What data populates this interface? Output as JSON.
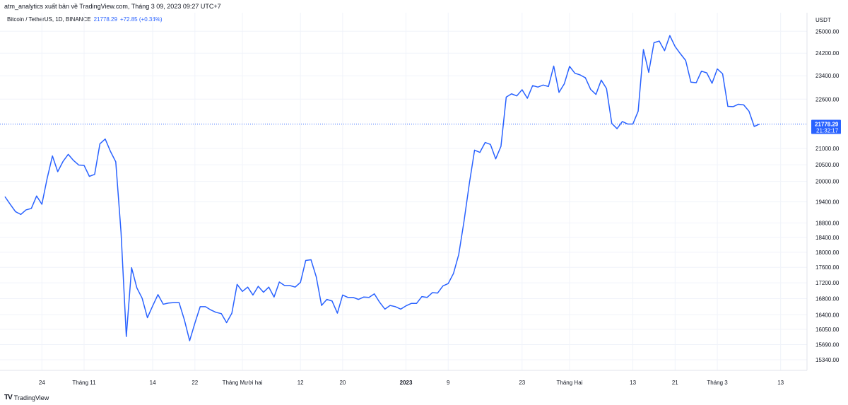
{
  "header": {
    "publisher": "atm_analytics xuất bản về TradingView.com, Tháng 3 09, 2023 09:27 UTC+7"
  },
  "legend": {
    "symbol": "Bitcoin / TetherUS, 1D, BINANCE",
    "price": "21778.29",
    "change": "+72.85 (+0.34%)"
  },
  "footer": {
    "logo": "TV",
    "brand": "TradingView"
  },
  "colors": {
    "line": "#2962ff",
    "grid": "#f0f3fa",
    "label_bg": "#2962ff"
  },
  "chart_data": {
    "type": "line",
    "title": "",
    "ylabel": "USDT",
    "y_scale": "log",
    "ylim": [
      15100,
      25700
    ],
    "y_ticks": [
      25000,
      24200,
      23400,
      22600,
      21000,
      20500,
      20000,
      19400,
      18800,
      18400,
      18000,
      17600,
      17200,
      16800,
      16400,
      16050,
      15690,
      15340
    ],
    "y_tick_labels": [
      "25000.00",
      "24200.00",
      "23400.00",
      "22600.00",
      "21000.00",
      "20500.00",
      "20000.00",
      "19400.00",
      "18800.00",
      "18400.00",
      "18000.00",
      "17600.00",
      "17200.00",
      "16800.00",
      "16400.00",
      "16050.00",
      "15690.00",
      "15340.00"
    ],
    "x_tick_labels": [
      {
        "label": "24",
        "date": "2022-10-24",
        "bold": false
      },
      {
        "label": "Tháng 11",
        "date": "2022-11-01",
        "bold": false
      },
      {
        "label": "14",
        "date": "2022-11-14",
        "bold": false
      },
      {
        "label": "22",
        "date": "2022-11-22",
        "bold": false
      },
      {
        "label": "Tháng Mười hai",
        "date": "2022-12-01",
        "bold": false
      },
      {
        "label": "12",
        "date": "2022-12-12",
        "bold": false
      },
      {
        "label": "20",
        "date": "2022-12-20",
        "bold": false
      },
      {
        "label": "2023",
        "date": "2023-01-01",
        "bold": true
      },
      {
        "label": "9",
        "date": "2023-01-09",
        "bold": false
      },
      {
        "label": "23",
        "date": "2023-01-23",
        "bold": false
      },
      {
        "label": "Tháng Hai",
        "date": "2023-02-01",
        "bold": false
      },
      {
        "label": "13",
        "date": "2023-02-13",
        "bold": false
      },
      {
        "label": "21",
        "date": "2023-02-21",
        "bold": false
      },
      {
        "label": "Tháng 3",
        "date": "2023-03-01",
        "bold": false
      },
      {
        "label": "13",
        "date": "2023-03-13",
        "bold": false
      }
    ],
    "x_range": [
      "2022-10-17",
      "2023-03-18"
    ],
    "last_price": 21778.29,
    "last_price_label": "21778.29",
    "countdown_label": "21:32:17",
    "series": [
      {
        "values": [
          {
            "date": "2022-10-17",
            "value": 19550
          },
          {
            "date": "2022-10-18",
            "value": 19330
          },
          {
            "date": "2022-10-19",
            "value": 19120
          },
          {
            "date": "2022-10-20",
            "value": 19040
          },
          {
            "date": "2022-10-21",
            "value": 19170
          },
          {
            "date": "2022-10-22",
            "value": 19210
          },
          {
            "date": "2022-10-23",
            "value": 19570
          },
          {
            "date": "2022-10-24",
            "value": 19330
          },
          {
            "date": "2022-10-25",
            "value": 20090
          },
          {
            "date": "2022-10-26",
            "value": 20770
          },
          {
            "date": "2022-10-27",
            "value": 20290
          },
          {
            "date": "2022-10-28",
            "value": 20600
          },
          {
            "date": "2022-10-29",
            "value": 20820
          },
          {
            "date": "2022-10-30",
            "value": 20630
          },
          {
            "date": "2022-10-31",
            "value": 20490
          },
          {
            "date": "2022-11-01",
            "value": 20480
          },
          {
            "date": "2022-11-02",
            "value": 20150
          },
          {
            "date": "2022-11-03",
            "value": 20210
          },
          {
            "date": "2022-11-04",
            "value": 21150
          },
          {
            "date": "2022-11-05",
            "value": 21300
          },
          {
            "date": "2022-11-06",
            "value": 20910
          },
          {
            "date": "2022-11-07",
            "value": 20590
          },
          {
            "date": "2022-11-08",
            "value": 18540
          },
          {
            "date": "2022-11-09",
            "value": 15880
          },
          {
            "date": "2022-11-10",
            "value": 17590
          },
          {
            "date": "2022-11-11",
            "value": 17070
          },
          {
            "date": "2022-11-12",
            "value": 16810
          },
          {
            "date": "2022-11-13",
            "value": 16330
          },
          {
            "date": "2022-11-14",
            "value": 16620
          },
          {
            "date": "2022-11-15",
            "value": 16900
          },
          {
            "date": "2022-11-16",
            "value": 16660
          },
          {
            "date": "2022-11-17",
            "value": 16690
          },
          {
            "date": "2022-11-18",
            "value": 16700
          },
          {
            "date": "2022-11-19",
            "value": 16700
          },
          {
            "date": "2022-11-20",
            "value": 16280
          },
          {
            "date": "2022-11-21",
            "value": 15780
          },
          {
            "date": "2022-11-22",
            "value": 16200
          },
          {
            "date": "2022-11-23",
            "value": 16600
          },
          {
            "date": "2022-11-24",
            "value": 16600
          },
          {
            "date": "2022-11-25",
            "value": 16520
          },
          {
            "date": "2022-11-26",
            "value": 16460
          },
          {
            "date": "2022-11-27",
            "value": 16430
          },
          {
            "date": "2022-11-28",
            "value": 16210
          },
          {
            "date": "2022-11-29",
            "value": 16440
          },
          {
            "date": "2022-11-30",
            "value": 17160
          },
          {
            "date": "2022-12-01",
            "value": 16980
          },
          {
            "date": "2022-12-02",
            "value": 17090
          },
          {
            "date": "2022-12-03",
            "value": 16890
          },
          {
            "date": "2022-12-04",
            "value": 17110
          },
          {
            "date": "2022-12-05",
            "value": 16960
          },
          {
            "date": "2022-12-06",
            "value": 17090
          },
          {
            "date": "2022-12-07",
            "value": 16840
          },
          {
            "date": "2022-12-08",
            "value": 17220
          },
          {
            "date": "2022-12-09",
            "value": 17130
          },
          {
            "date": "2022-12-10",
            "value": 17130
          },
          {
            "date": "2022-12-11",
            "value": 17090
          },
          {
            "date": "2022-12-12",
            "value": 17210
          },
          {
            "date": "2022-12-13",
            "value": 17780
          },
          {
            "date": "2022-12-14",
            "value": 17800
          },
          {
            "date": "2022-12-15",
            "value": 17350
          },
          {
            "date": "2022-12-16",
            "value": 16630
          },
          {
            "date": "2022-12-17",
            "value": 16780
          },
          {
            "date": "2022-12-18",
            "value": 16740
          },
          {
            "date": "2022-12-19",
            "value": 16440
          },
          {
            "date": "2022-12-20",
            "value": 16890
          },
          {
            "date": "2022-12-21",
            "value": 16830
          },
          {
            "date": "2022-12-22",
            "value": 16830
          },
          {
            "date": "2022-12-23",
            "value": 16780
          },
          {
            "date": "2022-12-24",
            "value": 16840
          },
          {
            "date": "2022-12-25",
            "value": 16830
          },
          {
            "date": "2022-12-26",
            "value": 16920
          },
          {
            "date": "2022-12-27",
            "value": 16710
          },
          {
            "date": "2022-12-28",
            "value": 16540
          },
          {
            "date": "2022-12-29",
            "value": 16630
          },
          {
            "date": "2022-12-30",
            "value": 16600
          },
          {
            "date": "2022-12-31",
            "value": 16540
          },
          {
            "date": "2023-01-01",
            "value": 16620
          },
          {
            "date": "2023-01-02",
            "value": 16680
          },
          {
            "date": "2023-01-03",
            "value": 16680
          },
          {
            "date": "2023-01-04",
            "value": 16850
          },
          {
            "date": "2023-01-05",
            "value": 16830
          },
          {
            "date": "2023-01-06",
            "value": 16950
          },
          {
            "date": "2023-01-07",
            "value": 16940
          },
          {
            "date": "2023-01-08",
            "value": 17120
          },
          {
            "date": "2023-01-09",
            "value": 17180
          },
          {
            "date": "2023-01-10",
            "value": 17440
          },
          {
            "date": "2023-01-11",
            "value": 17940
          },
          {
            "date": "2023-01-12",
            "value": 18850
          },
          {
            "date": "2023-01-13",
            "value": 19930
          },
          {
            "date": "2023-01-14",
            "value": 20950
          },
          {
            "date": "2023-01-15",
            "value": 20880
          },
          {
            "date": "2023-01-16",
            "value": 21190
          },
          {
            "date": "2023-01-17",
            "value": 21130
          },
          {
            "date": "2023-01-18",
            "value": 20680
          },
          {
            "date": "2023-01-19",
            "value": 21070
          },
          {
            "date": "2023-01-20",
            "value": 22670
          },
          {
            "date": "2023-01-21",
            "value": 22780
          },
          {
            "date": "2023-01-22",
            "value": 22710
          },
          {
            "date": "2023-01-23",
            "value": 22920
          },
          {
            "date": "2023-01-24",
            "value": 22630
          },
          {
            "date": "2023-01-25",
            "value": 23060
          },
          {
            "date": "2023-01-26",
            "value": 23010
          },
          {
            "date": "2023-01-27",
            "value": 23080
          },
          {
            "date": "2023-01-28",
            "value": 23030
          },
          {
            "date": "2023-01-29",
            "value": 23740
          },
          {
            "date": "2023-01-30",
            "value": 22830
          },
          {
            "date": "2023-01-31",
            "value": 23120
          },
          {
            "date": "2023-02-01",
            "value": 23730
          },
          {
            "date": "2023-02-02",
            "value": 23490
          },
          {
            "date": "2023-02-03",
            "value": 23430
          },
          {
            "date": "2023-02-04",
            "value": 23330
          },
          {
            "date": "2023-02-05",
            "value": 22930
          },
          {
            "date": "2023-02-06",
            "value": 22760
          },
          {
            "date": "2023-02-07",
            "value": 23250
          },
          {
            "date": "2023-02-08",
            "value": 22960
          },
          {
            "date": "2023-02-09",
            "value": 21800
          },
          {
            "date": "2023-02-10",
            "value": 21630
          },
          {
            "date": "2023-02-11",
            "value": 21860
          },
          {
            "date": "2023-02-12",
            "value": 21780
          },
          {
            "date": "2023-02-13",
            "value": 21780
          },
          {
            "date": "2023-02-14",
            "value": 22200
          },
          {
            "date": "2023-02-15",
            "value": 24330
          },
          {
            "date": "2023-02-16",
            "value": 23520
          },
          {
            "date": "2023-02-17",
            "value": 24580
          },
          {
            "date": "2023-02-18",
            "value": 24640
          },
          {
            "date": "2023-02-19",
            "value": 24290
          },
          {
            "date": "2023-02-20",
            "value": 24840
          },
          {
            "date": "2023-02-21",
            "value": 24440
          },
          {
            "date": "2023-02-22",
            "value": 24180
          },
          {
            "date": "2023-02-23",
            "value": 23940
          },
          {
            "date": "2023-02-24",
            "value": 23180
          },
          {
            "date": "2023-02-25",
            "value": 23160
          },
          {
            "date": "2023-02-26",
            "value": 23560
          },
          {
            "date": "2023-02-27",
            "value": 23500
          },
          {
            "date": "2023-02-28",
            "value": 23140
          },
          {
            "date": "2023-03-01",
            "value": 23640
          },
          {
            "date": "2023-03-02",
            "value": 23470
          },
          {
            "date": "2023-03-03",
            "value": 22360
          },
          {
            "date": "2023-03-04",
            "value": 22350
          },
          {
            "date": "2023-03-05",
            "value": 22430
          },
          {
            "date": "2023-03-06",
            "value": 22410
          },
          {
            "date": "2023-03-07",
            "value": 22200
          },
          {
            "date": "2023-03-08",
            "value": 21700
          },
          {
            "date": "2023-03-09",
            "value": 21778
          }
        ]
      }
    ]
  }
}
